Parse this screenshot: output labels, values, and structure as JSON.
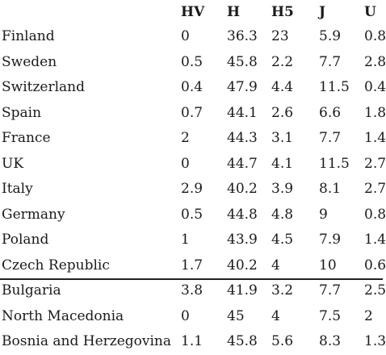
{
  "table": {
    "headers": [
      "",
      "HV",
      "H",
      "H5",
      "J",
      "U"
    ],
    "group1": [
      [
        "Finland",
        "0",
        "36.3",
        "23",
        "5.9",
        "0.8"
      ],
      [
        "Sweden",
        "0.5",
        "45.8",
        "2.2",
        "7.7",
        "2.8"
      ],
      [
        "Switzerland",
        "0.4",
        "47.9",
        "4.4",
        "11.5",
        "0.4"
      ],
      [
        "Spain",
        "0.7",
        "44.1",
        "2.6",
        "6.6",
        "1.8"
      ],
      [
        "France",
        "2",
        "44.3",
        "3.1",
        "7.7",
        "1.4"
      ],
      [
        "UK",
        "0",
        "44.7",
        "4.1",
        "11.5",
        "2.7"
      ],
      [
        "Italy",
        "2.9",
        "40.2",
        "3.9",
        "8.1",
        "2.7"
      ],
      [
        "Germany",
        "0.5",
        "44.8",
        "4.8",
        "9",
        "0.8"
      ],
      [
        "Poland",
        "1",
        "43.9",
        "4.5",
        "7.9",
        "1.4"
      ],
      [
        "Czech Republic",
        "1.7",
        "40.2",
        "4",
        "10",
        "0.6"
      ]
    ],
    "group2": [
      [
        "Bulgaria",
        "3.8",
        "41.9",
        "3.2",
        "7.7",
        "2.5"
      ],
      [
        "North Macedonia",
        "0",
        "45",
        "4",
        "7.5",
        "2"
      ],
      [
        "Bosnia and Herzegovina",
        "1.1",
        "45.8",
        "5.6",
        "8.3",
        "1.3"
      ]
    ]
  }
}
